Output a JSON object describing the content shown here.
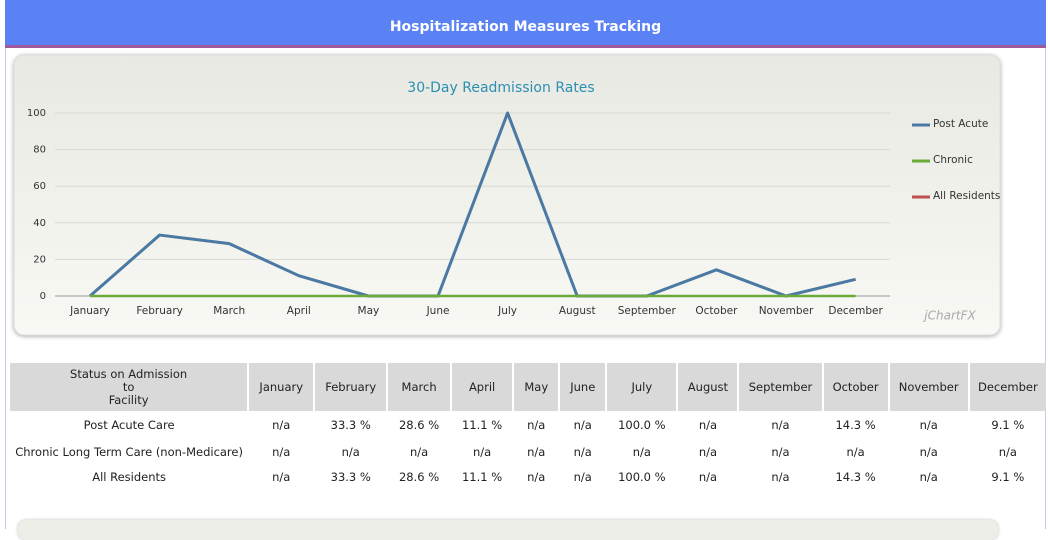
{
  "header": {
    "title": "Hospitalization Measures Tracking"
  },
  "chart_data": {
    "type": "line",
    "title": "30-Day Readmission Rates",
    "categories": [
      "January",
      "February",
      "March",
      "April",
      "May",
      "June",
      "July",
      "August",
      "September",
      "October",
      "November",
      "December"
    ],
    "series": [
      {
        "name": "Post Acute",
        "color": "#4a7aa3",
        "values": [
          0,
          33.3,
          28.6,
          11.1,
          0,
          0,
          100,
          0,
          0,
          14.3,
          0,
          9.1
        ]
      },
      {
        "name": "Chronic",
        "color": "#6bab3a",
        "values": [
          0,
          0,
          0,
          0,
          0,
          0,
          0,
          0,
          0,
          0,
          0,
          0
        ]
      },
      {
        "name": "All Residents",
        "color": "#c0504d",
        "values": [
          0,
          33.3,
          28.6,
          11.1,
          0,
          0,
          100,
          0,
          0,
          14.3,
          0,
          9.1
        ]
      }
    ],
    "ylim": [
      0,
      100
    ],
    "yticks": [
      0,
      20,
      40,
      60,
      80,
      100
    ],
    "grid": true,
    "legend": "right",
    "watermark": "jChartFX"
  },
  "table": {
    "header": [
      [
        "Status on Admission",
        "to",
        "Facility"
      ],
      "January",
      "February",
      "March",
      "April",
      "May",
      "June",
      "July",
      "August",
      "September",
      "October",
      "November",
      "December"
    ],
    "rows": [
      [
        "Post Acute Care",
        "n/a",
        "33.3 %",
        "28.6 %",
        "11.1 %",
        "n/a",
        "n/a",
        "100.0 %",
        "n/a",
        "n/a",
        "14.3 %",
        "n/a",
        "9.1 %"
      ],
      [
        "Chronic Long Term Care (non-Medicare)",
        "n/a",
        "n/a",
        "n/a",
        "n/a",
        "n/a",
        "n/a",
        "n/a",
        "n/a",
        "n/a",
        "n/a",
        "n/a",
        "n/a"
      ],
      [
        "All Residents",
        "n/a",
        "33.3 %",
        "28.6 %",
        "11.1 %",
        "n/a",
        "n/a",
        "100.0 %",
        "n/a",
        "n/a",
        "14.3 %",
        "n/a",
        "9.1 %"
      ]
    ]
  }
}
